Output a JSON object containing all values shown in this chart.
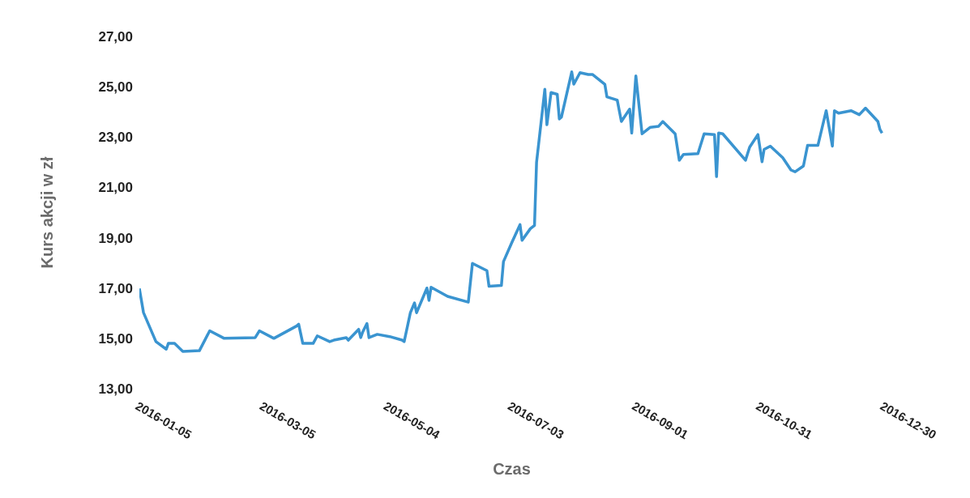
{
  "chart_data": {
    "type": "line",
    "xlabel": "Czas",
    "ylabel": "Kurs akcji w zł",
    "x": [
      "2016-01-05",
      "2016-01-07",
      "2016-01-13",
      "2016-01-18",
      "2016-01-19",
      "2016-01-22",
      "2016-01-26",
      "2016-02-03",
      "2016-02-08",
      "2016-02-15",
      "2016-03-01",
      "2016-03-03",
      "2016-03-10",
      "2016-03-21",
      "2016-03-22",
      "2016-03-24",
      "2016-03-29",
      "2016-03-31",
      "2016-04-06",
      "2016-04-08",
      "2016-04-14",
      "2016-04-15",
      "2016-04-20",
      "2016-04-21",
      "2016-04-22",
      "2016-04-24",
      "2016-04-25",
      "2016-04-29",
      "2016-05-05",
      "2016-05-11",
      "2016-05-12",
      "2016-05-15",
      "2016-05-17",
      "2016-05-18",
      "2016-05-23",
      "2016-05-24",
      "2016-05-25",
      "2016-06-02",
      "2016-06-12",
      "2016-06-14",
      "2016-06-21",
      "2016-06-22",
      "2016-06-28",
      "2016-06-29",
      "2016-07-03",
      "2016-07-07",
      "2016-07-08",
      "2016-07-12",
      "2016-07-14",
      "2016-07-15",
      "2016-07-19",
      "2016-07-20",
      "2016-07-22",
      "2016-07-25",
      "2016-07-26",
      "2016-07-27",
      "2016-08-01",
      "2016-08-02",
      "2016-08-05",
      "2016-08-09",
      "2016-08-11",
      "2016-08-17",
      "2016-08-18",
      "2016-08-23",
      "2016-08-25",
      "2016-08-29",
      "2016-08-30",
      "2016-09-01",
      "2016-09-04",
      "2016-09-08",
      "2016-09-12",
      "2016-09-14",
      "2016-09-20",
      "2016-09-22",
      "2016-09-24",
      "2016-10-01",
      "2016-10-04",
      "2016-10-09",
      "2016-10-10",
      "2016-10-11",
      "2016-10-13",
      "2016-10-24",
      "2016-10-26",
      "2016-10-30",
      "2016-11-01",
      "2016-11-02",
      "2016-11-05",
      "2016-11-11",
      "2016-11-15",
      "2016-11-17",
      "2016-11-21",
      "2016-11-23",
      "2016-11-28",
      "2016-12-02",
      "2016-12-05",
      "2016-12-06",
      "2016-12-08",
      "2016-12-14",
      "2016-12-18",
      "2016-12-21",
      "2016-12-27",
      "2016-12-28",
      "2016-12-29"
    ],
    "series": [
      {
        "color": "#3a94d0",
        "values": [
          16.98,
          16.02,
          14.87,
          14.57,
          14.8,
          14.8,
          14.48,
          14.51,
          15.3,
          15.0,
          15.03,
          15.3,
          15.0,
          15.49,
          15.56,
          14.8,
          14.8,
          15.1,
          14.87,
          14.93,
          15.03,
          14.93,
          15.36,
          15.03,
          15.26,
          15.59,
          15.03,
          15.16,
          15.07,
          14.93,
          14.87,
          16.02,
          16.41,
          16.02,
          17.0,
          16.51,
          17.03,
          16.67,
          16.44,
          17.98,
          17.69,
          17.07,
          17.1,
          18.05,
          18.8,
          19.52,
          18.9,
          19.36,
          19.49,
          22.0,
          24.9,
          23.49,
          24.77,
          24.7,
          23.72,
          23.79,
          25.59,
          25.1,
          25.56,
          25.49,
          25.49,
          25.1,
          24.6,
          24.47,
          23.62,
          24.11,
          23.16,
          25.43,
          23.13,
          23.39,
          23.43,
          23.62,
          23.13,
          22.08,
          22.31,
          22.34,
          23.13,
          23.1,
          21.43,
          23.16,
          23.13,
          22.08,
          22.6,
          23.1,
          22.02,
          22.51,
          22.64,
          22.18,
          21.69,
          21.62,
          21.85,
          22.67,
          22.67,
          24.05,
          22.64,
          24.05,
          23.95,
          24.05,
          23.89,
          24.15,
          23.62,
          23.3,
          23.16
        ]
      }
    ],
    "xlim": [
      "2016-01-05",
      "2016-12-30"
    ],
    "xticks": [
      "2016-01-05",
      "2016-03-05",
      "2016-05-04",
      "2016-07-03",
      "2016-09-01",
      "2016-10-31",
      "2016-12-30"
    ],
    "ylim": [
      13,
      27
    ],
    "yticks": [
      {
        "value": 13,
        "label": "13,00"
      },
      {
        "value": 15,
        "label": "15,00"
      },
      {
        "value": 17,
        "label": "17,00"
      },
      {
        "value": 19,
        "label": "19,00"
      },
      {
        "value": 21,
        "label": "21,00"
      },
      {
        "value": 23,
        "label": "23,00"
      },
      {
        "value": 25,
        "label": "25,00"
      },
      {
        "value": 27,
        "label": "27,00"
      }
    ],
    "marker": "none",
    "line_style": "solid"
  }
}
